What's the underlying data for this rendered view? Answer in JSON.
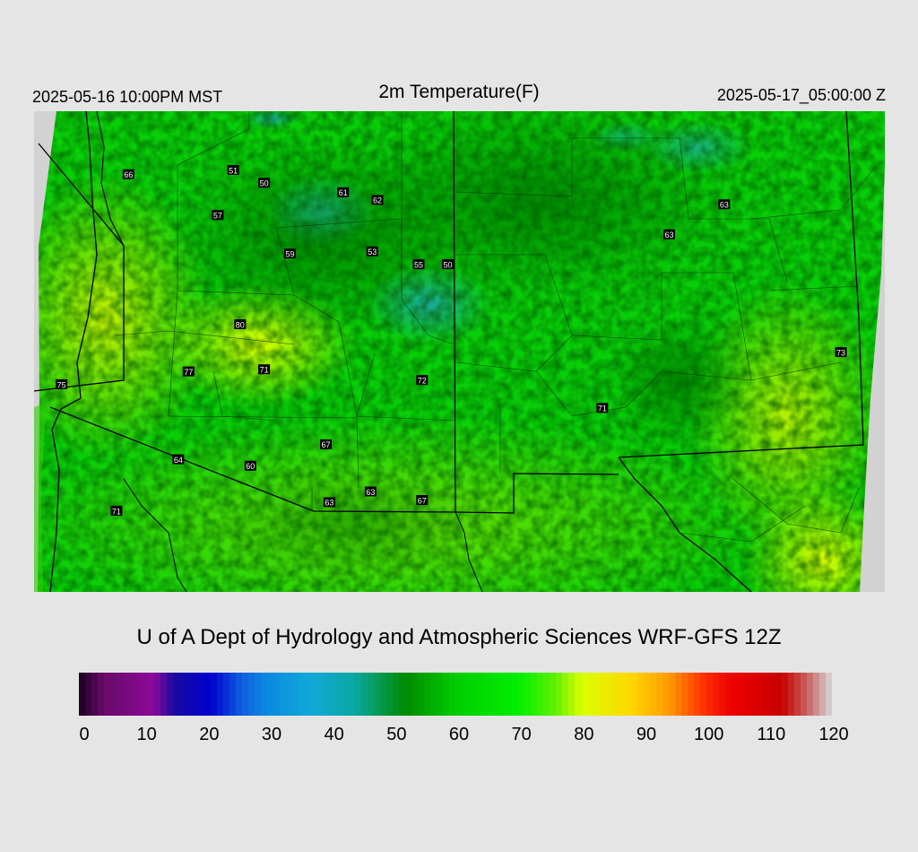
{
  "header": {
    "local_time": "2025-05-16 10:00PM MST",
    "title": "2m Temperature(F)",
    "valid_time": "2025-05-17_05:00:00 Z"
  },
  "credit": "U of A Dept of Hydrology and Atmospheric Sciences WRF-GFS 12Z",
  "colorbar": {
    "min": 0,
    "max": 120,
    "ticks": [
      "0",
      "10",
      "20",
      "30",
      "40",
      "50",
      "60",
      "70",
      "80",
      "90",
      "100",
      "110",
      "120"
    ],
    "stops": [
      {
        "v": 0,
        "c": "#1a0020"
      },
      {
        "v": 4,
        "c": "#6a0a6a"
      },
      {
        "v": 12,
        "c": "#8a0a9a"
      },
      {
        "v": 15,
        "c": "#1a0aa0"
      },
      {
        "v": 21,
        "c": "#0000cc"
      },
      {
        "v": 26,
        "c": "#1060e0"
      },
      {
        "v": 30,
        "c": "#0a8ae0"
      },
      {
        "v": 37,
        "c": "#12a8d8"
      },
      {
        "v": 44,
        "c": "#0aa8a0"
      },
      {
        "v": 52,
        "c": "#008a00"
      },
      {
        "v": 60,
        "c": "#00cc00"
      },
      {
        "v": 70,
        "c": "#00ee00"
      },
      {
        "v": 76,
        "c": "#60f000"
      },
      {
        "v": 80,
        "c": "#d8ff00"
      },
      {
        "v": 88,
        "c": "#ffd800"
      },
      {
        "v": 94,
        "c": "#ff9a00"
      },
      {
        "v": 100,
        "c": "#ff2a00"
      },
      {
        "v": 104,
        "c": "#ee0000"
      },
      {
        "v": 112,
        "c": "#c80000"
      },
      {
        "v": 116,
        "c": "#c86060"
      },
      {
        "v": 120,
        "c": "#d8d8d8"
      }
    ]
  },
  "stations": [
    {
      "label": "66",
      "lon": -119.25,
      "lat": 43.5
    },
    {
      "label": "51",
      "lon": -116.2,
      "lat": 43.6
    },
    {
      "label": "50",
      "lon": -115.3,
      "lat": 43.3
    },
    {
      "label": "61",
      "lon": -113.0,
      "lat": 43.08
    },
    {
      "label": "62",
      "lon": -112.0,
      "lat": 42.9
    },
    {
      "label": "57",
      "lon": -116.65,
      "lat": 42.55
    },
    {
      "label": "59",
      "lon": -114.55,
      "lat": 41.65
    },
    {
      "label": "53",
      "lon": -112.15,
      "lat": 41.7
    },
    {
      "label": "55",
      "lon": -110.8,
      "lat": 41.4
    },
    {
      "label": "50",
      "lon": -109.95,
      "lat": 41.4
    },
    {
      "label": "80",
      "lon": -116.0,
      "lat": 40.0
    },
    {
      "label": "77",
      "lon": -117.5,
      "lat": 38.9
    },
    {
      "label": "71",
      "lon": -115.3,
      "lat": 38.95
    },
    {
      "label": "75",
      "lon": -121.2,
      "lat": 38.6
    },
    {
      "label": "72",
      "lon": -110.7,
      "lat": 38.7
    },
    {
      "label": "71",
      "lon": -105.45,
      "lat": 38.05
    },
    {
      "label": "67",
      "lon": -113.5,
      "lat": 37.2
    },
    {
      "label": "64",
      "lon": -117.8,
      "lat": 36.85
    },
    {
      "label": "60",
      "lon": -115.7,
      "lat": 36.7
    },
    {
      "label": "63",
      "lon": -112.2,
      "lat": 36.1
    },
    {
      "label": "67",
      "lon": -110.7,
      "lat": 35.9
    },
    {
      "label": "63",
      "lon": -113.4,
      "lat": 35.85
    },
    {
      "label": "71",
      "lon": -119.6,
      "lat": 35.65
    },
    {
      "label": "63",
      "lon": -101.9,
      "lat": 42.8
    },
    {
      "label": "63",
      "lon": -103.5,
      "lat": 42.1
    },
    {
      "label": "73",
      "lon": -98.5,
      "lat": 39.35
    }
  ],
  "map_legend_note": ""
}
